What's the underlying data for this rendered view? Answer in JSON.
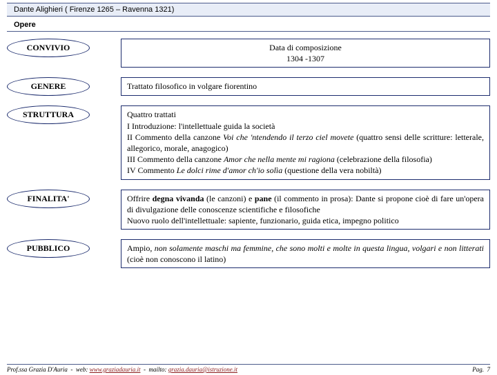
{
  "header": "Dante Alighieri ( Firenze 1265 – Ravenna 1321)",
  "section": "Opere",
  "rows": [
    {
      "label": "CONVIVIO",
      "value": "Data di composizione\n1304 -1307",
      "center": true
    },
    {
      "label": "GENERE",
      "value": "Trattato filosofico in volgare fiorentino"
    },
    {
      "label": "STRUTTURA",
      "value": "Quattro trattati\nI Introduzione: l'intellettuale guida la società\nII Commento della canzone <i>Voi che 'ntendendo il terzo ciel movete</i> (quattro sensi delle scritture: letterale, allegorico, morale, anagogico)\nIII Commento della canzone <i>Amor che nella mente mi ragiona</i> (celebrazione della filosofia)\nIV Commento  <i>Le dolci rime d'amor ch'io solìa</i> (questione della vera nobiltà)"
    },
    {
      "label": "FINALITA'",
      "value": "Offrire <b>degna vivanda</b> (le canzoni) e <b>pane</b> (il commento in prosa): Dante si propone cioè di fare un'opera di divulgazione delle conoscenze scientifiche e filosofiche\nNuovo ruolo dell'intellettuale: sapiente, funzionario, guida etica, impegno politico"
    },
    {
      "label": "PUBBLICO",
      "value": "Ampio, <i>non solamente maschi ma femmine, che sono molti e molte in questa lingua, volgari e non litterati</i> (cioè non conoscono il latino)"
    }
  ],
  "footer": {
    "author": "Prof.ssa Grazia D'Auria",
    "web_label": "web:",
    "web": "www.graziadauria.it",
    "mail_label": "mailto:",
    "mail": "grazia.dauria@istruzione.it",
    "page_label": "Pag.",
    "page_num": "7"
  }
}
